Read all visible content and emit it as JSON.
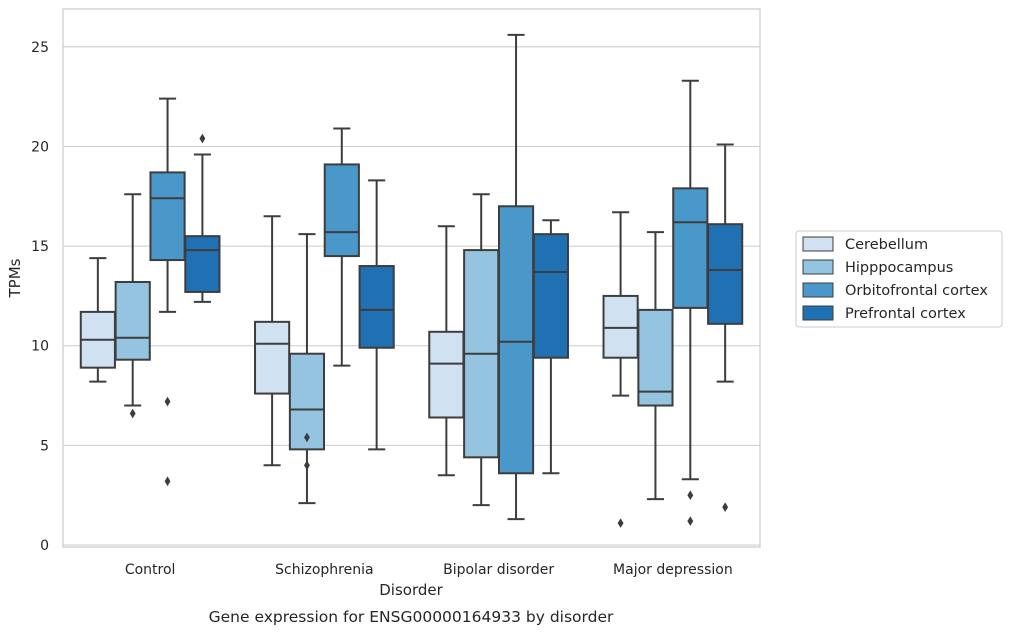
{
  "chart_data": {
    "type": "box",
    "title": "Gene expression for ENSG00000164933 by disorder",
    "xlabel": "Disorder",
    "ylabel": "TPMs",
    "ylim": [
      -0.1,
      26.9
    ],
    "yticks": [
      "0",
      "5",
      "10",
      "15",
      "20",
      "25"
    ],
    "grid": "horizontal",
    "legend_position": "right",
    "categories": [
      "Control",
      "Schizophrenia",
      "Bipolar disorder",
      "Major depression"
    ],
    "series": [
      {
        "name": "Cerebellum",
        "color": "#d0e1f2",
        "boxes": [
          {
            "whisker_low": 8.2,
            "q1": 8.9,
            "median": 10.3,
            "q3": 11.7,
            "whisker_high": 14.4,
            "outliers": []
          },
          {
            "whisker_low": 4.0,
            "q1": 7.6,
            "median": 10.1,
            "q3": 11.2,
            "whisker_high": 16.5,
            "outliers": []
          },
          {
            "whisker_low": 3.5,
            "q1": 6.4,
            "median": 9.1,
            "q3": 10.7,
            "whisker_high": 16.0,
            "outliers": []
          },
          {
            "whisker_low": 7.5,
            "q1": 9.4,
            "median": 10.9,
            "q3": 12.5,
            "whisker_high": 16.7,
            "outliers": [
              1.1
            ]
          }
        ]
      },
      {
        "name": "Hipppocampus",
        "color": "#94c4df",
        "boxes": [
          {
            "whisker_low": 7.0,
            "q1": 9.3,
            "median": 10.4,
            "q3": 13.2,
            "whisker_high": 17.6,
            "outliers": [
              6.6
            ]
          },
          {
            "whisker_low": 2.1,
            "q1": 4.8,
            "median": 6.8,
            "q3": 9.6,
            "whisker_high": 15.6,
            "outliers": [
              5.4,
              4.0
            ]
          },
          {
            "whisker_low": 2.0,
            "q1": 4.4,
            "median": 9.6,
            "q3": 14.8,
            "whisker_high": 17.6,
            "outliers": []
          },
          {
            "whisker_low": 2.3,
            "q1": 7.0,
            "median": 7.7,
            "q3": 11.8,
            "whisker_high": 15.7,
            "outliers": []
          }
        ]
      },
      {
        "name": "Orbitofrontal cortex",
        "color": "#4a98c9",
        "boxes": [
          {
            "whisker_low": 11.7,
            "q1": 14.3,
            "median": 17.4,
            "q3": 18.7,
            "whisker_high": 22.4,
            "outliers": [
              7.2,
              3.2
            ]
          },
          {
            "whisker_low": 9.0,
            "q1": 14.5,
            "median": 15.7,
            "q3": 19.1,
            "whisker_high": 20.9,
            "outliers": []
          },
          {
            "whisker_low": 1.3,
            "q1": 3.6,
            "median": 10.2,
            "q3": 17.0,
            "whisker_high": 25.6,
            "outliers": []
          },
          {
            "whisker_low": 3.3,
            "q1": 11.9,
            "median": 16.2,
            "q3": 17.9,
            "whisker_high": 23.3,
            "outliers": [
              2.5,
              1.2
            ]
          }
        ]
      },
      {
        "name": "Prefrontal cortex",
        "color": "#2070b4",
        "boxes": [
          {
            "whisker_low": 12.2,
            "q1": 12.7,
            "median": 14.8,
            "q3": 15.5,
            "whisker_high": 19.6,
            "outliers": [
              20.4
            ]
          },
          {
            "whisker_low": 4.8,
            "q1": 9.9,
            "median": 11.8,
            "q3": 14.0,
            "whisker_high": 18.3,
            "outliers": []
          },
          {
            "whisker_low": 3.6,
            "q1": 9.4,
            "median": 13.7,
            "q3": 15.6,
            "whisker_high": 16.3,
            "outliers": []
          },
          {
            "whisker_low": 8.2,
            "q1": 11.1,
            "median": 13.8,
            "q3": 16.1,
            "whisker_high": 20.1,
            "outliers": [
              1.9
            ]
          }
        ]
      }
    ]
  }
}
